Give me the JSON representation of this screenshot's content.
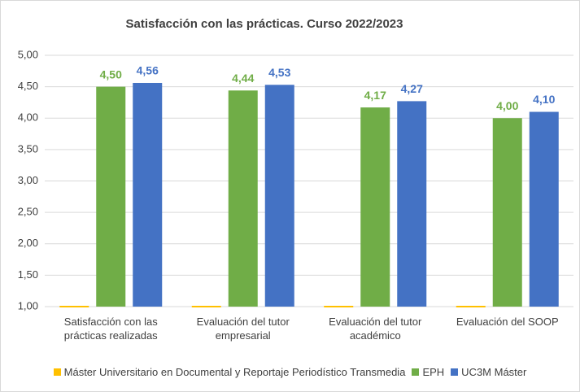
{
  "chart_data": {
    "type": "bar",
    "title": "Satisfacción con las prácticas. Curso 2022/2023",
    "categories": [
      "Satisfacción con las prácticas realizadas",
      "Evaluación del tutor empresarial",
      "Evaluación del tutor académico",
      "Evaluación del SOOP"
    ],
    "series": [
      {
        "name": "Máster Universitario en Documental y Reportaje Periodístico Transmedia",
        "color": "#ffc000",
        "values": [
          1,
          1,
          1,
          1
        ]
      },
      {
        "name": "EPH",
        "color": "#70ad47",
        "values": [
          4.5,
          4.44,
          4.17,
          4.0
        ],
        "value_labels": [
          "4,50",
          "4,44",
          "4,17",
          "4,00"
        ]
      },
      {
        "name": "UC3M Máster",
        "color": "#4472c4",
        "values": [
          4.56,
          4.53,
          4.27,
          4.1
        ],
        "value_labels": [
          "4,56",
          "4,53",
          "4,27",
          "4,10"
        ]
      }
    ],
    "ylim": [
      1,
      5
    ],
    "yticks": [
      {
        "value": 1,
        "label": "1,00"
      },
      {
        "value": 1.5,
        "label": "1,50"
      },
      {
        "value": 2,
        "label": "2,00"
      },
      {
        "value": 2.5,
        "label": "2,50"
      },
      {
        "value": 3,
        "label": "3,00"
      },
      {
        "value": 3.5,
        "label": "3,50"
      },
      {
        "value": 4,
        "label": "4,00"
      },
      {
        "value": 4.5,
        "label": "4,50"
      },
      {
        "value": 5,
        "label": "5,00"
      }
    ],
    "grid": true,
    "legend": "bottom"
  }
}
